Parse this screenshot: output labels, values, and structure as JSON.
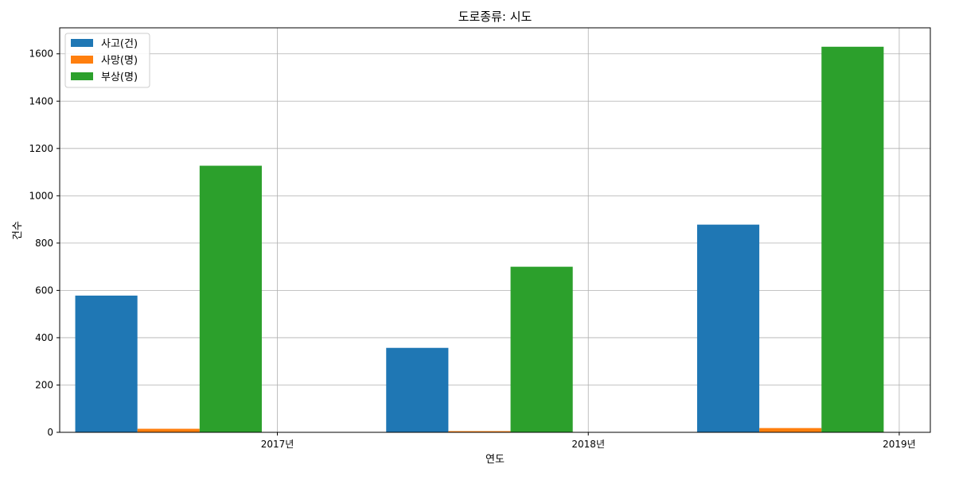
{
  "chart_data": {
    "type": "bar",
    "title": "도로종류: 시도",
    "xlabel": "연도",
    "ylabel": "건수",
    "x_ticks": [
      "2017년",
      "2018년",
      "2019년"
    ],
    "ylim": [
      0,
      1710
    ],
    "y_ticks": [
      0,
      200,
      400,
      600,
      800,
      1000,
      1200,
      1400,
      1600
    ],
    "grid": true,
    "legend_position": "top-left",
    "series": [
      {
        "name": "사고(건)",
        "color": "#1f77b4",
        "values": [
          578,
          357,
          878
        ]
      },
      {
        "name": "사망(명)",
        "color": "#ff7f0e",
        "values": [
          15,
          5,
          18
        ]
      },
      {
        "name": "부상(명)",
        "color": "#2ca02c",
        "values": [
          1127,
          700,
          1630
        ]
      }
    ]
  }
}
